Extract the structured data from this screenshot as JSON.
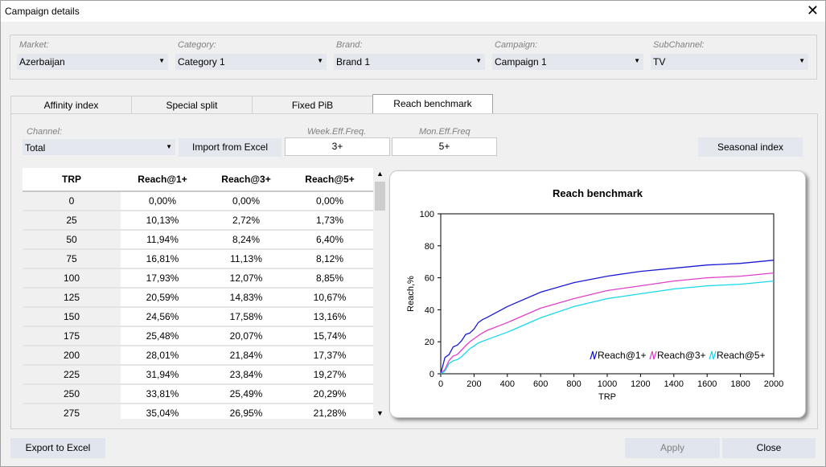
{
  "window": {
    "title": "Campaign details",
    "close_glyph": "✕"
  },
  "filters": [
    {
      "label": "Market:",
      "value": "Azerbaijan"
    },
    {
      "label": "Category:",
      "value": "Category 1"
    },
    {
      "label": "Brand:",
      "value": "Brand 1"
    },
    {
      "label": "Campaign:",
      "value": "Campaign 1"
    },
    {
      "label": "SubChannel:",
      "value": "TV"
    }
  ],
  "tabs": [
    "Affinity index",
    "Special split",
    "Fixed PiB",
    "Reach benchmark"
  ],
  "active_tab": "Reach benchmark",
  "channel": {
    "label": "Channel:",
    "value": "Total"
  },
  "import_button": "Import from Excel",
  "week_eff_freq": {
    "label": "Week.Eff.Freq.",
    "value": "3+"
  },
  "mon_eff_freq": {
    "label": "Mon.Eff.Freq",
    "value": "5+"
  },
  "seasonal_button": "Seasonal index",
  "table": {
    "headers": [
      "TRP",
      "Reach@1+",
      "Reach@3+",
      "Reach@5+"
    ],
    "rows": [
      [
        "0",
        "0,00%",
        "0,00%",
        "0,00%"
      ],
      [
        "25",
        "10,13%",
        "2,72%",
        "1,73%"
      ],
      [
        "50",
        "11,94%",
        "8,24%",
        "6,40%"
      ],
      [
        "75",
        "16,81%",
        "11,13%",
        "8,12%"
      ],
      [
        "100",
        "17,93%",
        "12,07%",
        "8,85%"
      ],
      [
        "125",
        "20,59%",
        "14,83%",
        "10,67%"
      ],
      [
        "150",
        "24,56%",
        "17,58%",
        "13,16%"
      ],
      [
        "175",
        "25,48%",
        "20,07%",
        "15,74%"
      ],
      [
        "200",
        "28,01%",
        "21,84%",
        "17,37%"
      ],
      [
        "225",
        "31,94%",
        "23,84%",
        "19,27%"
      ],
      [
        "250",
        "33,81%",
        "25,49%",
        "20,29%"
      ],
      [
        "275",
        "35,04%",
        "26,95%",
        "21,28%"
      ]
    ]
  },
  "chart_data": {
    "type": "line",
    "title": "Reach benchmark",
    "xlabel": "TRP",
    "ylabel": "Reach,%",
    "xlim": [
      0,
      2000
    ],
    "ylim": [
      0,
      100
    ],
    "xticks": [
      "0",
      "200",
      "400",
      "600",
      "800",
      "1000",
      "1200",
      "1400",
      "1600",
      "1800",
      "2000"
    ],
    "yticks": [
      "0",
      "20",
      "40",
      "60",
      "80",
      "100"
    ],
    "legend_position": "bottom-right",
    "x": [
      0,
      25,
      50,
      75,
      100,
      125,
      150,
      175,
      200,
      225,
      250,
      275,
      400,
      600,
      800,
      1000,
      1200,
      1400,
      1600,
      1800,
      2000
    ],
    "series": [
      {
        "name": "Reach@1+",
        "color": "#1a1ad4",
        "values": [
          0,
          10.13,
          11.94,
          16.81,
          17.93,
          20.59,
          24.56,
          25.48,
          28.01,
          31.94,
          33.81,
          35.04,
          42,
          51,
          57,
          61,
          64,
          66,
          68,
          69,
          71
        ]
      },
      {
        "name": "Reach@3+",
        "color": "#e040c8",
        "values": [
          0,
          2.72,
          8.24,
          11.13,
          12.07,
          14.83,
          17.58,
          20.07,
          21.84,
          23.84,
          25.49,
          26.95,
          32,
          41,
          47,
          52,
          55,
          58,
          60,
          61,
          63
        ]
      },
      {
        "name": "Reach@5+",
        "color": "#18d8e8",
        "values": [
          0,
          1.73,
          6.4,
          8.12,
          8.85,
          10.67,
          13.16,
          15.74,
          17.37,
          19.27,
          20.29,
          21.28,
          26,
          35,
          42,
          47,
          50,
          53,
          55,
          56,
          58
        ]
      }
    ]
  },
  "footer": {
    "export": "Export to Excel",
    "apply": "Apply",
    "close": "Close"
  }
}
